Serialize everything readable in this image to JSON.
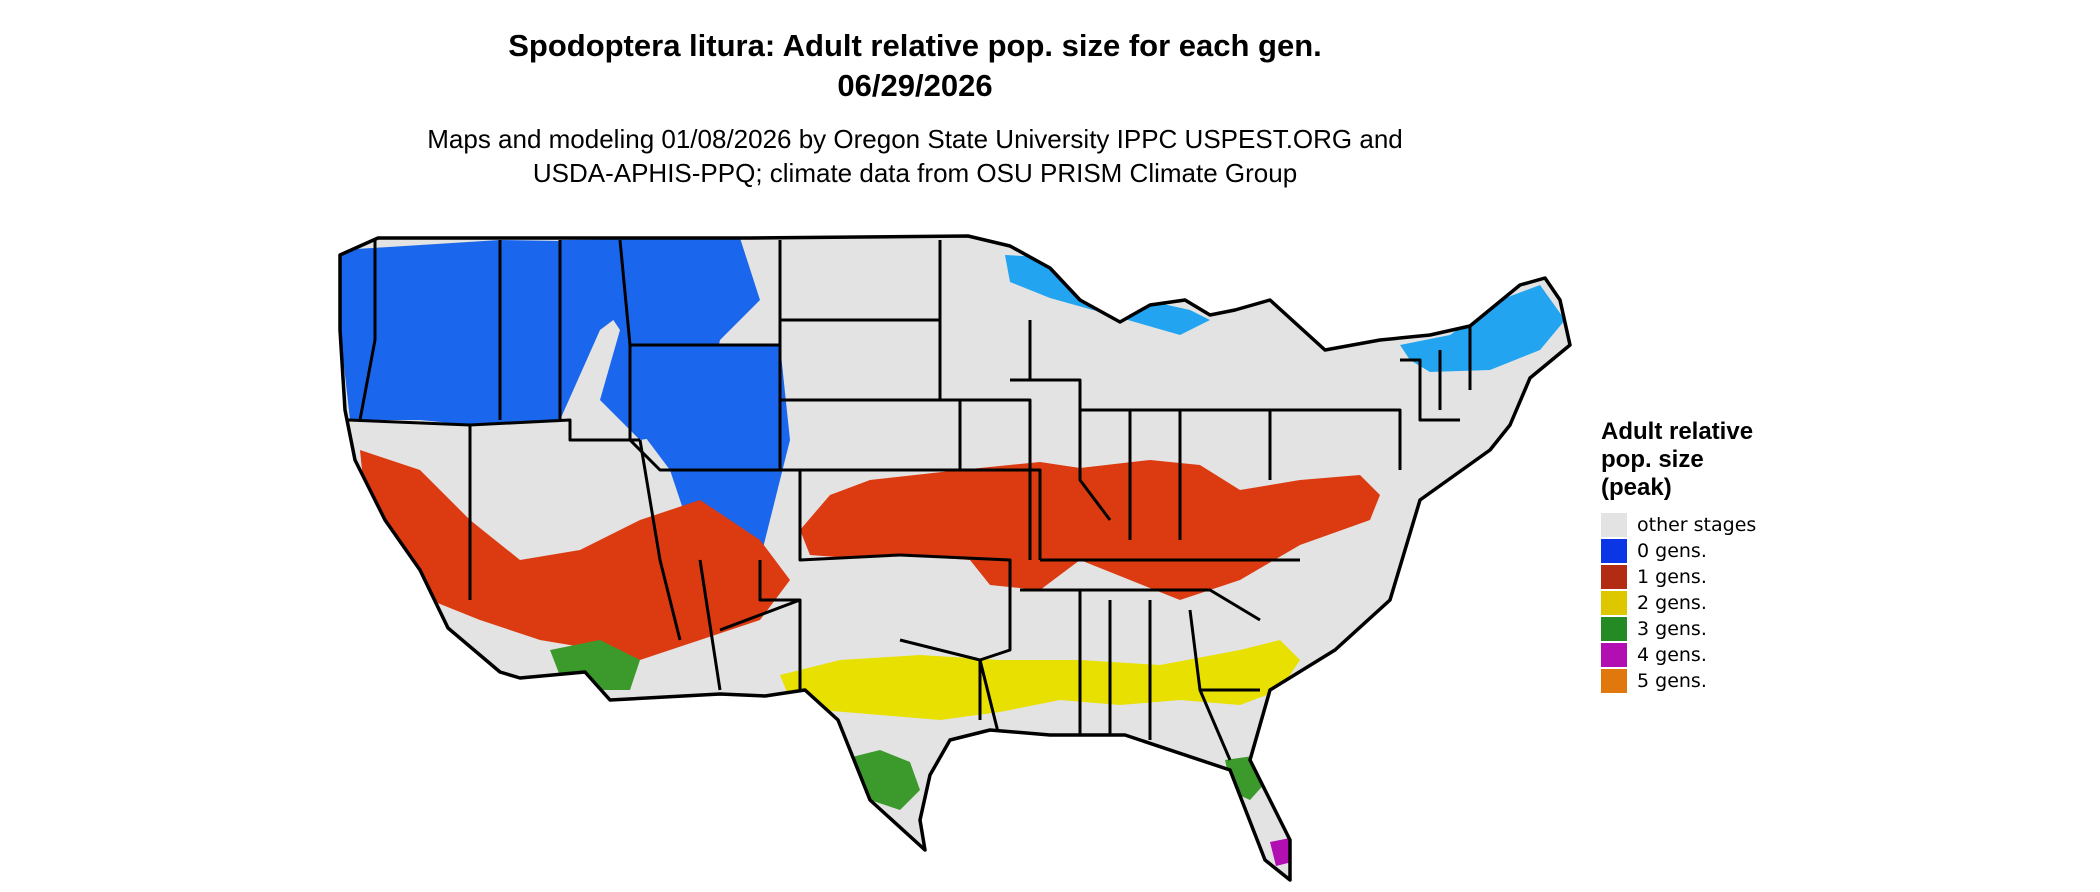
{
  "title": {
    "line1": "Spodoptera litura: Adult relative pop. size for each gen.",
    "line2": "06/29/2026"
  },
  "subtitle": {
    "line1": "Maps and modeling 01/08/2026 by Oregon State University IPPC USPEST.ORG and",
    "line2": "USDA-APHIS-PPQ; climate data from OSU PRISM Climate Group"
  },
  "legend": {
    "title_lines": [
      "Adult relative",
      "pop. size",
      "(peak)"
    ],
    "items": [
      {
        "label": "other stages",
        "color": "#e3e3e3"
      },
      {
        "label": "0 gens.",
        "color": "#0a36e6"
      },
      {
        "label": "1 gens.",
        "color": "#b22b13"
      },
      {
        "label": "2 gens.",
        "color": "#dfc700"
      },
      {
        "label": "3 gens.",
        "color": "#248a24"
      },
      {
        "label": "4 gens.",
        "color": "#b20fb2"
      },
      {
        "label": "5 gens.",
        "color": "#e0780e"
      }
    ]
  },
  "map": {
    "region": "contiguous-united-states",
    "base_color": "#e3e3e3",
    "border_color": "#000000",
    "zones": [
      {
        "name": "pacific-northwest-0-gens",
        "class_label": "0 gens.",
        "color": "#1a66ec"
      },
      {
        "name": "northern-rockies-0-gens",
        "class_label": "0 gens.",
        "color": "#1a66ec"
      },
      {
        "name": "colorado-rockies-0-gens",
        "class_label": "0 gens.",
        "color": "#1a66ec"
      },
      {
        "name": "upper-michigan-0-gens",
        "class_label": "0 gens.",
        "color": "#22a4f0"
      },
      {
        "name": "northern-new-england-0-gens",
        "class_label": "0 gens.",
        "color": "#22a4f0"
      },
      {
        "name": "central-band-1-gens",
        "class_label": "1 gens.",
        "color": "#dc3a10"
      },
      {
        "name": "southwest-1-gens",
        "class_label": "1 gens.",
        "color": "#dc3a10"
      },
      {
        "name": "southern-band-2-gens",
        "class_label": "2 gens.",
        "color": "#e8e000"
      },
      {
        "name": "arizona-3-gens",
        "class_label": "3 gens.",
        "color": "#3c9a2c"
      },
      {
        "name": "south-texas-3-gens",
        "class_label": "3 gens.",
        "color": "#3c9a2c"
      },
      {
        "name": "central-florida-3-gens",
        "class_label": "3 gens.",
        "color": "#3c9a2c"
      },
      {
        "name": "south-florida-4-gens",
        "class_label": "4 gens.",
        "color": "#b20fb2"
      }
    ]
  }
}
